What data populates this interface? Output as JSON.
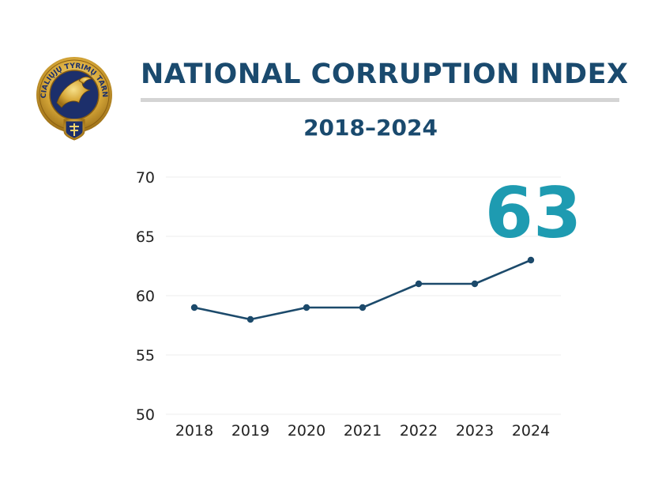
{
  "header": {
    "title": "NATIONAL CORRUPTION INDEX",
    "subtitle": "2018–2024"
  },
  "logo": {
    "ring_text": "SPECIALIŲJŲ TYRIMŲ TARNYBA",
    "icon": "eagle-emblem-icon"
  },
  "highlight": {
    "value": "63"
  },
  "colors": {
    "title": "#1a4a6e",
    "line": "#1c4a6b",
    "highlight": "#1e9bb1",
    "grid": "#eeeeee"
  },
  "chart_data": {
    "type": "line",
    "x": [
      "2018",
      "2019",
      "2020",
      "2021",
      "2022",
      "2023",
      "2024"
    ],
    "series": [
      {
        "values": [
          59,
          58,
          59,
          59,
          61,
          61,
          63
        ]
      }
    ],
    "title": "NATIONAL CORRUPTION INDEX",
    "subtitle": "2018–2024",
    "xlabel": "",
    "ylabel": "",
    "ylim": [
      50,
      70
    ],
    "yticks": [
      50,
      55,
      60,
      65,
      70
    ],
    "grid": true,
    "legend": "none"
  }
}
